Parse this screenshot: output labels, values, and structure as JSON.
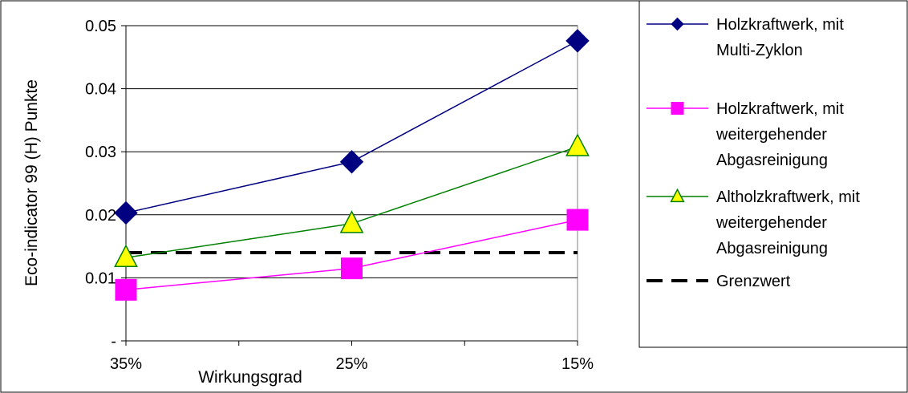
{
  "chart_data": {
    "type": "line",
    "categories": [
      "35%",
      "25%",
      "15%"
    ],
    "xlabel": "Wirkungsgrad",
    "ylabel": "Eco-indicator 99 (H) Punkte",
    "ylim": [
      0,
      0.05
    ],
    "yticks": [
      {
        "value": 0,
        "label": "-"
      },
      {
        "value": 0.01,
        "label": "0.01"
      },
      {
        "value": 0.02,
        "label": "0.02"
      },
      {
        "value": 0.03,
        "label": "0.03"
      },
      {
        "value": 0.04,
        "label": "0.04"
      },
      {
        "value": 0.05,
        "label": "0.05"
      }
    ],
    "grid": "horizontal",
    "legend_position": "right",
    "series": [
      {
        "name_lines": [
          "Holzkraftwerk, mit",
          "Multi-Zyklon"
        ],
        "values": [
          0.0203,
          0.0284,
          0.0476
        ],
        "color": "#000080",
        "marker": "diamond",
        "marker_fill": "#000080"
      },
      {
        "name_lines": [
          "Holzkraftwerk, mit",
          "weitergehender",
          "Abgasreinigung"
        ],
        "values": [
          0.0081,
          0.0115,
          0.0192
        ],
        "color": "#ff00ff",
        "marker": "square",
        "marker_fill": "#ff00ff"
      },
      {
        "name_lines": [
          "Altholzkraftwerk, mit",
          "weitergehender",
          "Abgasreinigung"
        ],
        "values": [
          0.0132,
          0.0186,
          0.0308
        ],
        "color": "#008000",
        "marker": "triangle",
        "marker_fill": "#ffff00"
      }
    ],
    "reference_line": {
      "name": "Grenzwert",
      "value": 0.014,
      "color": "#000000",
      "style": "dashed"
    }
  }
}
